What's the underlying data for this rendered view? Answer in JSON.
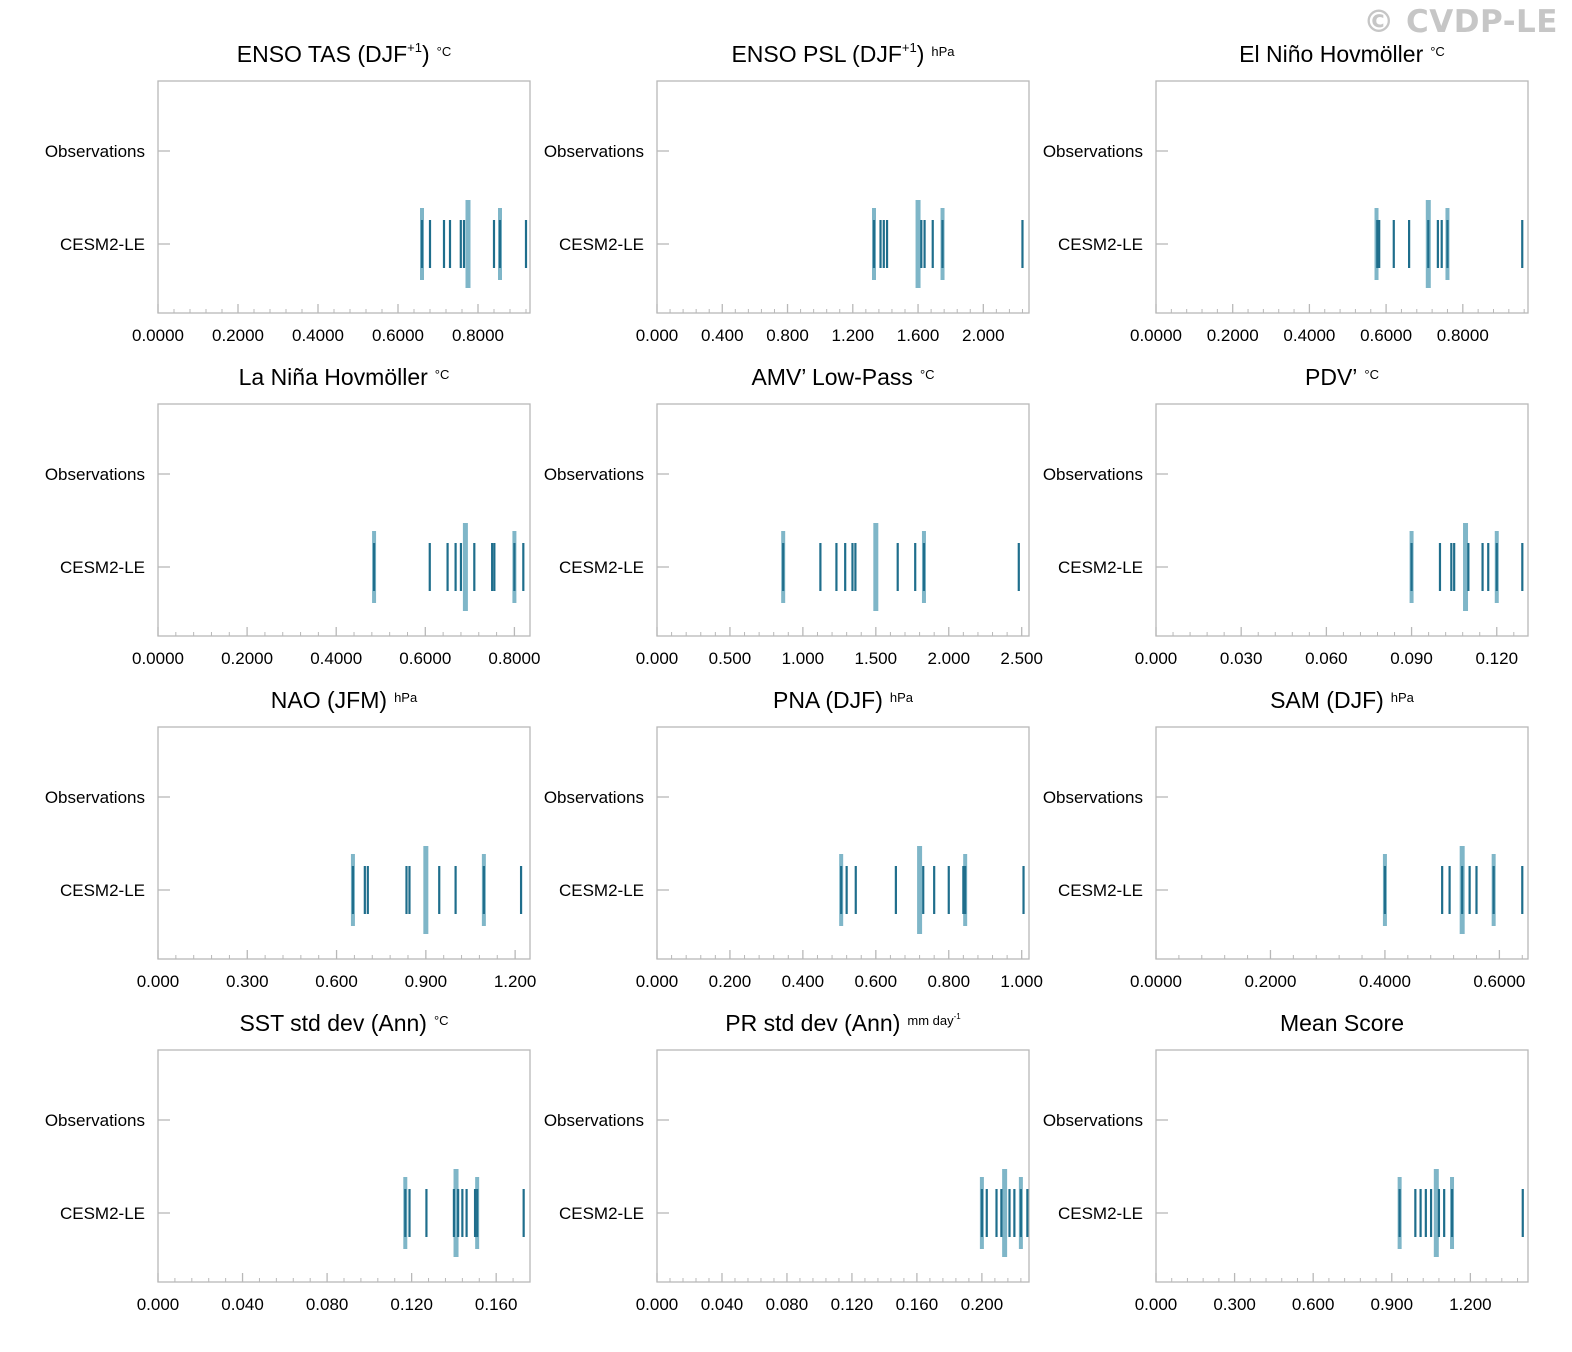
{
  "watermark": "© CVDP-LE",
  "row_labels": [
    "Observations",
    "CESM2-LE"
  ],
  "colors": {
    "tick": "#1f6e8c",
    "highlight": "#7fb6c8",
    "frame": "#b8b8b8"
  },
  "chart_data": [
    {
      "type": "strip",
      "title": "ENSO TAS (DJF",
      "title_sup": "+1",
      "title_close": ")",
      "units": "°C",
      "units_sup": "",
      "xlim": [
        0,
        0.93
      ],
      "xticks": [
        "0.0000",
        "0.2000",
        "0.4000",
        "0.6000",
        "0.8000"
      ],
      "xtick_values": [
        0,
        0.2,
        0.4,
        0.6,
        0.8
      ],
      "categories": [
        "Observations",
        "CESM2-LE"
      ],
      "values": [
        0.66,
        0.68,
        0.715,
        0.73,
        0.757,
        0.765,
        0.84,
        0.855,
        0.92
      ],
      "highlight": [
        0.66,
        0.775,
        0.855
      ]
    },
    {
      "type": "strip",
      "title": "ENSO PSL (DJF",
      "title_sup": "+1",
      "title_close": ")",
      "units": "hPa",
      "units_sup": "",
      "xlim": [
        0,
        2.28
      ],
      "xticks": [
        "0.000",
        "0.400",
        "0.800",
        "1.200",
        "1.600",
        "2.000"
      ],
      "xtick_values": [
        0,
        0.4,
        0.8,
        1.2,
        1.6,
        2.0
      ],
      "categories": [
        "Observations",
        "CESM2-LE"
      ],
      "values": [
        1.33,
        1.37,
        1.39,
        1.41,
        1.62,
        1.64,
        1.69,
        1.75,
        2.24
      ],
      "highlight": [
        1.33,
        1.6,
        1.75
      ]
    },
    {
      "type": "strip",
      "title": "El Niño Hovmöller",
      "title_sup": "",
      "title_close": "",
      "units": "°C",
      "units_sup": "",
      "xlim": [
        0,
        0.97
      ],
      "xticks": [
        "0.0000",
        "0.2000",
        "0.4000",
        "0.6000",
        "0.8000"
      ],
      "xtick_values": [
        0,
        0.2,
        0.4,
        0.6,
        0.8
      ],
      "categories": [
        "Observations",
        "CESM2-LE"
      ],
      "values": [
        0.577,
        0.582,
        0.62,
        0.66,
        0.71,
        0.735,
        0.745,
        0.76,
        0.955
      ],
      "highlight": [
        0.575,
        0.71,
        0.76
      ]
    },
    {
      "type": "strip",
      "title": "La Niña Hovmöller",
      "title_sup": "",
      "title_close": "",
      "units": "°C",
      "units_sup": "",
      "xlim": [
        0,
        0.835
      ],
      "xticks": [
        "0.0000",
        "0.2000",
        "0.4000",
        "0.6000",
        "0.8000"
      ],
      "xtick_values": [
        0,
        0.2,
        0.4,
        0.6,
        0.8
      ],
      "categories": [
        "Observations",
        "CESM2-LE"
      ],
      "values": [
        0.485,
        0.61,
        0.65,
        0.668,
        0.68,
        0.71,
        0.75,
        0.755,
        0.8,
        0.82
      ],
      "highlight": [
        0.485,
        0.69,
        0.8
      ]
    },
    {
      "type": "strip",
      "title": "AMV’ Low-Pass",
      "title_sup": "",
      "title_close": "",
      "units": "°C",
      "units_sup": "",
      "xlim": [
        0,
        2.55
      ],
      "xticks": [
        "0.000",
        "0.500",
        "1.000",
        "1.500",
        "2.000",
        "2.500"
      ],
      "xtick_values": [
        0,
        0.5,
        1.0,
        1.5,
        2.0,
        2.5
      ],
      "categories": [
        "Observations",
        "CESM2-LE"
      ],
      "values": [
        0.865,
        1.12,
        1.23,
        1.29,
        1.34,
        1.36,
        1.65,
        1.77,
        1.83,
        2.48
      ],
      "highlight": [
        0.865,
        1.5,
        1.83
      ]
    },
    {
      "type": "strip",
      "title": "PDV’",
      "title_sup": "",
      "title_close": "",
      "units": "°C",
      "units_sup": "",
      "xlim": [
        0,
        0.131
      ],
      "xticks": [
        "0.000",
        "0.030",
        "0.060",
        "0.090",
        "0.120"
      ],
      "xtick_values": [
        0,
        0.03,
        0.06,
        0.09,
        0.12
      ],
      "categories": [
        "Observations",
        "CESM2-LE"
      ],
      "values": [
        0.09,
        0.1,
        0.104,
        0.105,
        0.11,
        0.115,
        0.117,
        0.12,
        0.129
      ],
      "highlight": [
        0.09,
        0.109,
        0.12
      ]
    },
    {
      "type": "strip",
      "title": "NAO (JFM)",
      "title_sup": "",
      "title_close": "",
      "units": "hPa",
      "units_sup": "",
      "xlim": [
        0,
        1.25
      ],
      "xticks": [
        "0.000",
        "0.300",
        "0.600",
        "0.900",
        "1.200"
      ],
      "xtick_values": [
        0,
        0.3,
        0.6,
        0.9,
        1.2
      ],
      "categories": [
        "Observations",
        "CESM2-LE"
      ],
      "values": [
        0.655,
        0.695,
        0.705,
        0.835,
        0.845,
        0.945,
        1.0,
        1.095,
        1.22
      ],
      "highlight": [
        0.655,
        0.9,
        1.095
      ]
    },
    {
      "type": "strip",
      "title": "PNA (DJF)",
      "title_sup": "",
      "title_close": "",
      "units": "hPa",
      "units_sup": "",
      "xlim": [
        0,
        1.02
      ],
      "xticks": [
        "0.000",
        "0.200",
        "0.400",
        "0.600",
        "0.800",
        "1.000"
      ],
      "xtick_values": [
        0,
        0.2,
        0.4,
        0.6,
        0.8,
        1.0
      ],
      "categories": [
        "Observations",
        "CESM2-LE"
      ],
      "values": [
        0.505,
        0.52,
        0.545,
        0.655,
        0.73,
        0.76,
        0.8,
        0.84,
        0.845,
        1.005
      ],
      "highlight": [
        0.505,
        0.72,
        0.845
      ]
    },
    {
      "type": "strip",
      "title": "SAM (DJF)",
      "title_sup": "",
      "title_close": "",
      "units": "hPa",
      "units_sup": "",
      "xlim": [
        0,
        0.65
      ],
      "xticks": [
        "0.0000",
        "0.2000",
        "0.4000",
        "0.6000"
      ],
      "xtick_values": [
        0,
        0.2,
        0.4,
        0.6
      ],
      "categories": [
        "Observations",
        "CESM2-LE"
      ],
      "values": [
        0.4,
        0.5,
        0.513,
        0.535,
        0.548,
        0.56,
        0.59,
        0.64
      ],
      "highlight": [
        0.4,
        0.535,
        0.59
      ]
    },
    {
      "type": "strip",
      "title": "SST std dev (Ann)",
      "title_sup": "",
      "title_close": "",
      "units": "°C",
      "units_sup": "",
      "xlim": [
        0,
        0.176
      ],
      "xticks": [
        "0.000",
        "0.040",
        "0.080",
        "0.120",
        "0.160"
      ],
      "xtick_values": [
        0,
        0.04,
        0.08,
        0.12,
        0.16
      ],
      "categories": [
        "Observations",
        "CESM2-LE"
      ],
      "values": [
        0.117,
        0.119,
        0.127,
        0.14,
        0.142,
        0.144,
        0.146,
        0.15,
        0.151,
        0.173
      ],
      "highlight": [
        0.117,
        0.141,
        0.151
      ]
    },
    {
      "type": "strip",
      "title": "PR std dev (Ann)",
      "title_sup": "",
      "title_close": "",
      "units": "mm day",
      "units_sup": "-1",
      "xlim": [
        0,
        0.229
      ],
      "xticks": [
        "0.000",
        "0.040",
        "0.080",
        "0.120",
        "0.160",
        "0.200"
      ],
      "xtick_values": [
        0,
        0.04,
        0.08,
        0.12,
        0.16,
        0.2
      ],
      "categories": [
        "Observations",
        "CESM2-LE"
      ],
      "values": [
        0.2,
        0.203,
        0.209,
        0.212,
        0.217,
        0.22,
        0.224,
        0.228
      ],
      "highlight": [
        0.2,
        0.214,
        0.224
      ]
    },
    {
      "type": "strip",
      "title": "Mean Score",
      "title_sup": "",
      "title_close": "",
      "units": "",
      "units_sup": "",
      "xlim": [
        0,
        1.42
      ],
      "xticks": [
        "0.000",
        "0.300",
        "0.600",
        "0.900",
        "1.200"
      ],
      "xtick_values": [
        0,
        0.3,
        0.6,
        0.9,
        1.2
      ],
      "categories": [
        "Observations",
        "CESM2-LE"
      ],
      "values": [
        0.93,
        0.99,
        1.01,
        1.03,
        1.05,
        1.08,
        1.1,
        1.13,
        1.4
      ],
      "highlight": [
        0.93,
        1.07,
        1.13
      ]
    }
  ]
}
